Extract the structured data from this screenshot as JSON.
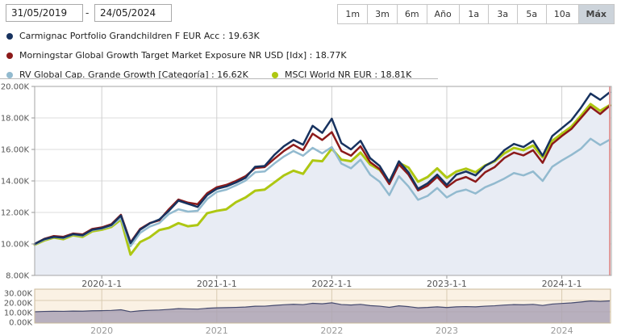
{
  "toolbar": {
    "date_from": "31/05/2019",
    "date_separator": "-",
    "date_to": "24/05/2024",
    "range_buttons": [
      "1m",
      "3m",
      "6m",
      "Año",
      "1a",
      "3a",
      "5a",
      "10a",
      "Máx"
    ],
    "selected_range": "Máx"
  },
  "legend": {
    "items": [
      {
        "label": "Carmignac Portfolio Grandchildren F EUR Acc : 19.63K",
        "color": "#17325f"
      },
      {
        "label": "Morningstar Global Growth Target Market Exposure NR USD [Idx] : 18.77K",
        "color": "#8c1a1a"
      },
      {
        "label": "RV Global Cap. Grande Growth [Categoría] : 16.62K",
        "color": "#92bacf"
      },
      {
        "label": "MSCI World NR EUR : 18.81K",
        "color": "#aec712"
      }
    ]
  },
  "colors": {
    "area_fill": "#e8ecf4",
    "grid_h": "#dcdcdc",
    "grid_v": "#cfcfcf",
    "frame": "#a6a6a6",
    "axis_text": "#555555",
    "end_plotline": "#e09a9a",
    "nav_bg": "#faf1e4",
    "nav_border": "#c9b89a",
    "nav_grid": "#d9cbb2",
    "nav_fill": "#a7a0b4",
    "nav_line": "#454a6e",
    "nav_year_text": "#999999",
    "selected_button_bg": "#ccd3da"
  },
  "chart_data": [
    {
      "type": "line",
      "title": "",
      "xlabel": "",
      "ylabel": "",
      "ylim": [
        8,
        20
      ],
      "grid": true,
      "legend_position": "top",
      "months": [
        "2019-05-31",
        "2019-06",
        "2019-07",
        "2019-08",
        "2019-09",
        "2019-10",
        "2019-11",
        "2019-12",
        "2020-01",
        "2020-02",
        "2020-03",
        "2020-04",
        "2020-05",
        "2020-06",
        "2020-07",
        "2020-08",
        "2020-09",
        "2020-10",
        "2020-11",
        "2020-12",
        "2021-01",
        "2021-02",
        "2021-03",
        "2021-04",
        "2021-05",
        "2021-06",
        "2021-07",
        "2021-08",
        "2021-09",
        "2021-10",
        "2021-11",
        "2021-12",
        "2022-01",
        "2022-02",
        "2022-03",
        "2022-04",
        "2022-05",
        "2022-06",
        "2022-07",
        "2022-08",
        "2022-09",
        "2022-10",
        "2022-11",
        "2022-12",
        "2023-01",
        "2023-02",
        "2023-03",
        "2023-04",
        "2023-05",
        "2023-06",
        "2023-07",
        "2023-08",
        "2023-09",
        "2023-10",
        "2023-11",
        "2023-12",
        "2024-01",
        "2024-02",
        "2024-03",
        "2024-04",
        "2024-05-24"
      ],
      "y_ticks": [
        {
          "v": 20,
          "label": "20.00K"
        },
        {
          "v": 18,
          "label": "18.00K"
        },
        {
          "v": 16,
          "label": "16.00K"
        },
        {
          "v": 14,
          "label": "14.00K"
        },
        {
          "v": 12,
          "label": "12.00K"
        },
        {
          "v": 10,
          "label": "10.00K"
        },
        {
          "v": 8,
          "label": "8.00K"
        }
      ],
      "x_ticks": [
        {
          "i": 7,
          "label": "2020-1-1"
        },
        {
          "i": 19,
          "label": "2021-1-1"
        },
        {
          "i": 31,
          "label": "2022-1-1"
        },
        {
          "i": 43,
          "label": "2023-1-1"
        },
        {
          "i": 55,
          "label": "2024-1-1"
        }
      ],
      "series": [
        {
          "name": "Carmignac Portfolio Grandchildren F EUR Acc",
          "final_value": "19.63K",
          "color": "#17325f",
          "values": [
            10.0,
            10.3,
            10.45,
            10.4,
            10.62,
            10.55,
            10.9,
            11.0,
            11.2,
            11.8,
            10.05,
            10.9,
            11.3,
            11.55,
            12.1,
            12.75,
            12.55,
            12.35,
            13.1,
            13.5,
            13.65,
            13.9,
            14.2,
            14.9,
            14.95,
            15.65,
            16.2,
            16.6,
            16.3,
            17.5,
            17.05,
            17.95,
            16.4,
            16.0,
            16.55,
            15.45,
            14.95,
            13.95,
            15.25,
            14.55,
            13.5,
            13.85,
            14.4,
            13.75,
            14.4,
            14.6,
            14.35,
            14.95,
            15.3,
            15.95,
            16.35,
            16.15,
            16.55,
            15.6,
            16.85,
            17.35,
            17.85,
            18.65,
            19.55,
            19.15,
            19.63
          ]
        },
        {
          "name": "Morningstar Global Growth Target Market Exposure NR USD [Idx]",
          "final_value": "18.77K",
          "color": "#8c1a1a",
          "values": [
            10.0,
            10.32,
            10.5,
            10.45,
            10.66,
            10.6,
            10.95,
            11.05,
            11.25,
            11.85,
            10.1,
            10.95,
            11.32,
            11.5,
            12.2,
            12.82,
            12.62,
            12.52,
            13.22,
            13.6,
            13.75,
            14.0,
            14.3,
            14.82,
            14.88,
            15.4,
            15.9,
            16.3,
            15.95,
            17.0,
            16.6,
            17.1,
            15.9,
            15.6,
            16.2,
            15.2,
            14.75,
            13.8,
            15.05,
            14.4,
            13.4,
            13.7,
            14.25,
            13.6,
            14.05,
            14.25,
            13.95,
            14.55,
            14.88,
            15.45,
            15.8,
            15.62,
            15.95,
            15.15,
            16.35,
            16.85,
            17.3,
            18.0,
            18.7,
            18.25,
            18.77
          ]
        },
        {
          "name": "RV Global Cap. Grande Growth [Categoría]",
          "final_value": "16.62K",
          "color": "#92bacf",
          "values": [
            9.97,
            10.27,
            10.44,
            10.37,
            10.6,
            10.52,
            10.87,
            10.97,
            11.15,
            11.65,
            9.85,
            10.7,
            11.1,
            11.32,
            11.9,
            12.2,
            12.05,
            12.1,
            12.85,
            13.3,
            13.45,
            13.72,
            14.02,
            14.55,
            14.6,
            15.1,
            15.55,
            15.9,
            15.6,
            16.1,
            15.75,
            16.15,
            15.1,
            14.8,
            15.35,
            14.4,
            13.95,
            13.1,
            14.3,
            13.65,
            12.8,
            13.05,
            13.55,
            12.95,
            13.3,
            13.45,
            13.2,
            13.6,
            13.85,
            14.15,
            14.5,
            14.35,
            14.6,
            14.0,
            14.9,
            15.3,
            15.65,
            16.05,
            16.68,
            16.28,
            16.62
          ]
        },
        {
          "name": "MSCI World NR EUR",
          "final_value": "18.81K",
          "color": "#aec712",
          "area_fill": "#e8ecf4",
          "values": [
            9.95,
            10.22,
            10.4,
            10.3,
            10.55,
            10.45,
            10.8,
            10.9,
            11.08,
            11.55,
            9.32,
            10.12,
            10.42,
            10.88,
            11.02,
            11.32,
            11.12,
            11.2,
            11.95,
            12.1,
            12.2,
            12.65,
            12.95,
            13.38,
            13.45,
            13.9,
            14.35,
            14.65,
            14.45,
            15.3,
            15.25,
            16.05,
            15.35,
            15.25,
            15.8,
            15.05,
            14.7,
            13.95,
            15.15,
            14.85,
            13.95,
            14.25,
            14.8,
            14.2,
            14.6,
            14.78,
            14.55,
            14.98,
            15.25,
            15.75,
            16.1,
            15.95,
            16.25,
            15.5,
            16.55,
            17.0,
            17.45,
            18.15,
            18.88,
            18.45,
            18.81
          ]
        }
      ]
    },
    {
      "type": "area",
      "title": "navigator",
      "ylim": [
        0,
        30
      ],
      "y_ticks": [
        {
          "v": 30,
          "label": "30.00K"
        },
        {
          "v": 20,
          "label": "20.00K"
        },
        {
          "v": 10,
          "label": "10.00K"
        },
        {
          "v": 0,
          "label": "0.00K"
        }
      ],
      "x_ticks": [
        {
          "i": 7,
          "label": "2020"
        },
        {
          "i": 19,
          "label": "2021"
        },
        {
          "i": 31,
          "label": "2022"
        },
        {
          "i": 43,
          "label": "2023"
        },
        {
          "i": 55,
          "label": "2024"
        }
      ],
      "series": [
        {
          "name": "Carmignac Portfolio Grandchildren F EUR Acc",
          "color": "#454a6e",
          "values": [
            10.0,
            10.3,
            10.45,
            10.4,
            10.62,
            10.55,
            10.9,
            11.0,
            11.2,
            11.8,
            10.05,
            10.9,
            11.3,
            11.55,
            12.1,
            12.75,
            12.55,
            12.35,
            13.1,
            13.5,
            13.65,
            13.9,
            14.2,
            14.9,
            14.95,
            15.65,
            16.2,
            16.6,
            16.3,
            17.5,
            17.05,
            17.95,
            16.4,
            16.0,
            16.55,
            15.45,
            14.95,
            13.95,
            15.25,
            14.55,
            13.5,
            13.85,
            14.4,
            13.75,
            14.4,
            14.6,
            14.35,
            14.95,
            15.3,
            15.95,
            16.35,
            16.15,
            16.55,
            15.6,
            16.85,
            17.35,
            17.85,
            18.65,
            19.55,
            19.15,
            19.63
          ]
        }
      ]
    }
  ]
}
